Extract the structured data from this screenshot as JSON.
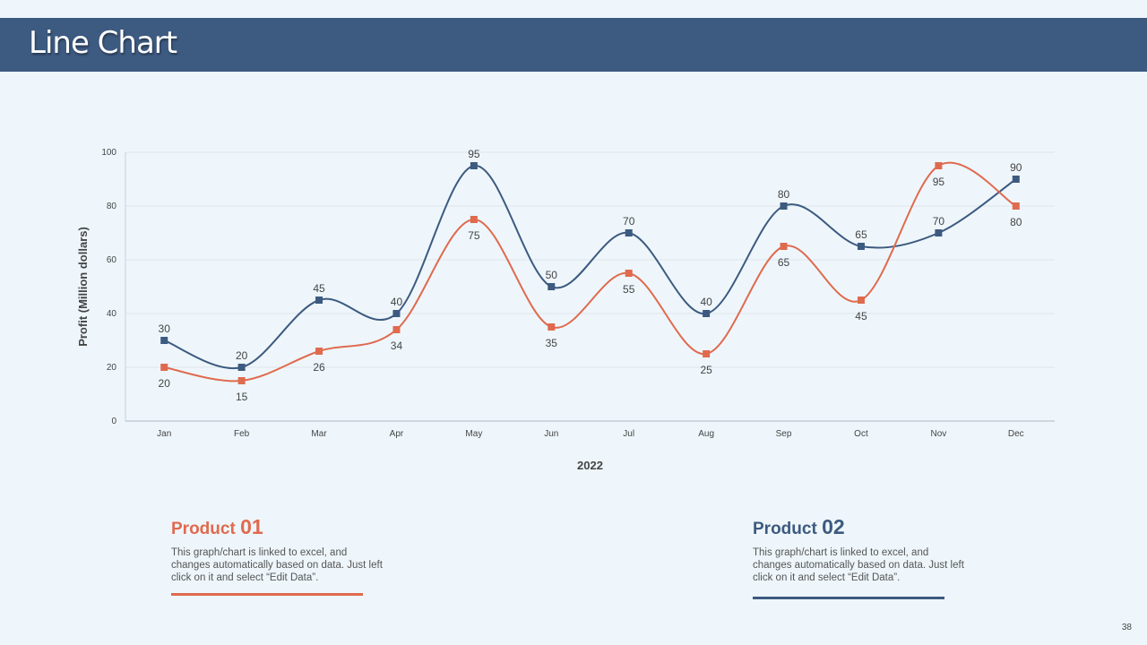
{
  "title": "Line Chart",
  "page_number": "38",
  "colors": {
    "product01": "#e06a4e",
    "product02": "#3d5a80",
    "header": "#3d5a80"
  },
  "products": [
    {
      "label": "Product",
      "number": "01",
      "description": "This graph/chart is linked to excel, and changes automatically based on data. Just left click on it and select “Edit Data”."
    },
    {
      "label": "Product",
      "number": "02",
      "description": "This graph/chart is linked to excel, and changes automatically based on data. Just left click on it and select “Edit Data”."
    }
  ],
  "chart_data": {
    "type": "line",
    "title": "",
    "xlabel": "2022",
    "ylabel": "Profit  (Million dollars)",
    "ylim": [
      0,
      100
    ],
    "yticks": [
      0,
      20,
      40,
      60,
      80,
      100
    ],
    "grid": true,
    "categories": [
      "Jan",
      "Feb",
      "Mar",
      "Apr",
      "May",
      "Jun",
      "Jul",
      "Aug",
      "Sep",
      "Oct",
      "Nov",
      "Dec"
    ],
    "series": [
      {
        "name": "Product 02",
        "color": "#3d5a80",
        "values": [
          30,
          20,
          45,
          40,
          95,
          50,
          70,
          40,
          80,
          65,
          70,
          90
        ],
        "label_position": "above"
      },
      {
        "name": "Product 01",
        "color": "#e06a4e",
        "values": [
          20,
          15,
          26,
          34,
          75,
          35,
          55,
          25,
          65,
          45,
          95,
          80
        ],
        "label_position": "below"
      }
    ]
  }
}
